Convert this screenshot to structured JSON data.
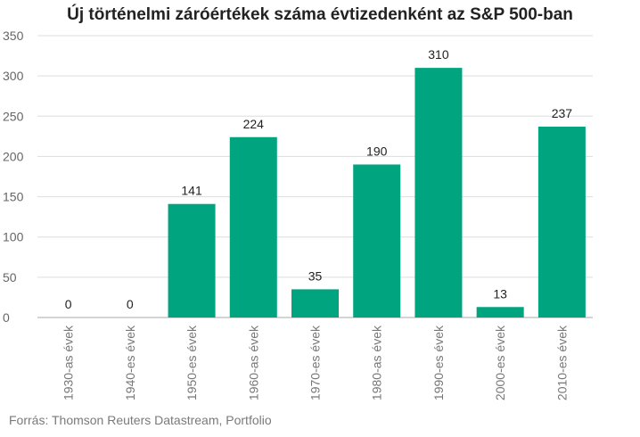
{
  "chart_data": {
    "type": "bar",
    "title": "Új történelmi záróértékek száma évtizedenként az S&P 500-ban",
    "source": "Forrás: Thomson Reuters Datastream, Portfolio",
    "categories": [
      "1930-as évek",
      "1940-es évek",
      "1950-es évek",
      "1960-as évek",
      "1970-es évek",
      "1980-as évek",
      "1990-es évek",
      "2000-es évek",
      "2010-es évek"
    ],
    "values": [
      0,
      0,
      141,
      224,
      35,
      190,
      310,
      13,
      237
    ],
    "ylim": [
      0,
      350
    ],
    "yticks": [
      0,
      50,
      100,
      150,
      200,
      250,
      300,
      350
    ],
    "grid": true,
    "legend": "none",
    "bar_color": "#00a47e"
  }
}
